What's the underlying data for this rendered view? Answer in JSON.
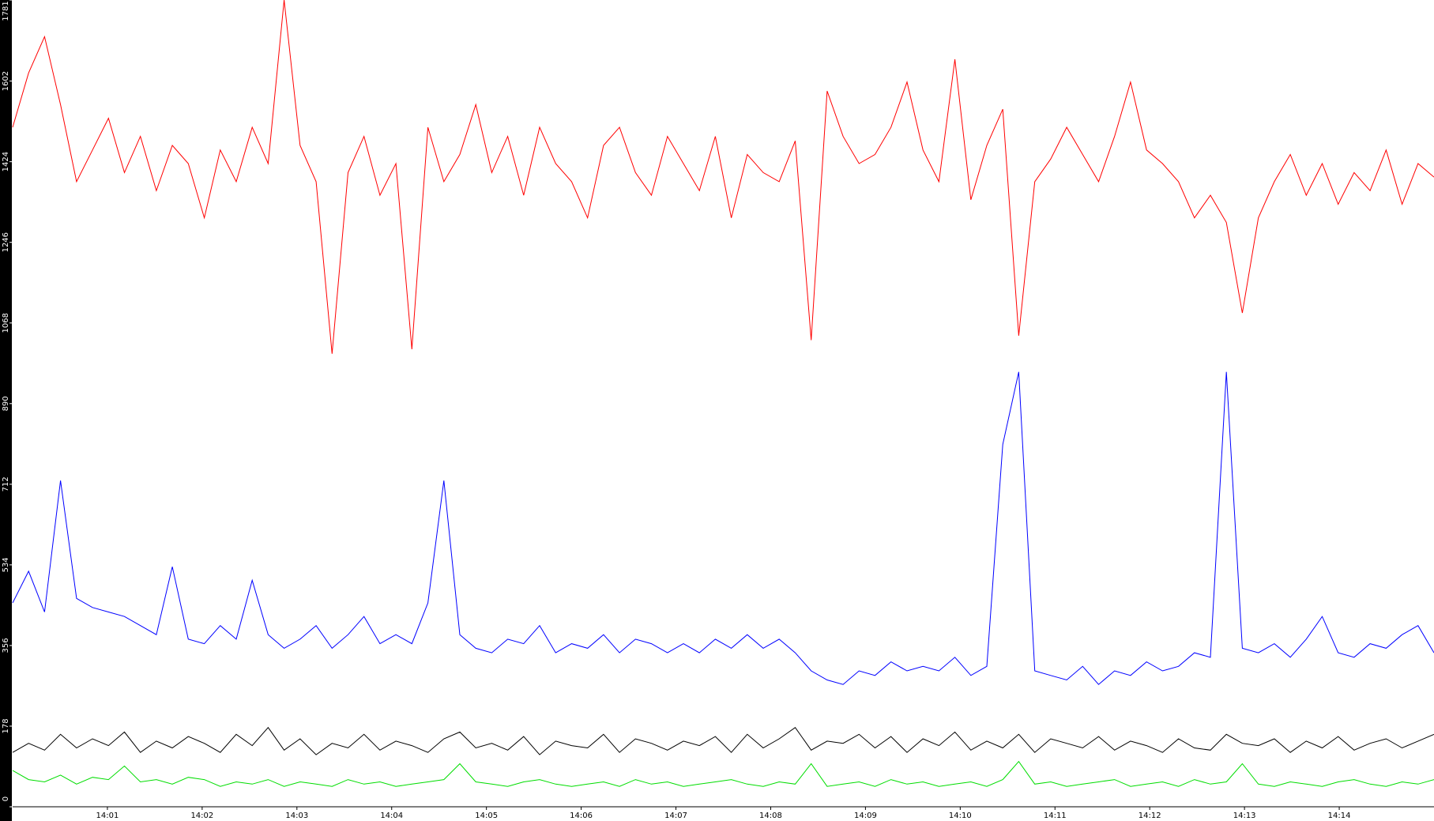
{
  "chart_data": {
    "type": "line",
    "xlim": [
      "14:00",
      "14:15"
    ],
    "xticks": [
      "14:01",
      "14:02",
      "14:03",
      "14:04",
      "14:05",
      "14:06",
      "14:07",
      "14:08",
      "14:09",
      "14:10",
      "14:11",
      "14:12",
      "14:13",
      "14:14"
    ],
    "ylim": [
      0,
      1781
    ],
    "yticks": [
      0,
      178,
      356,
      534,
      712,
      890,
      1068,
      1246,
      1424,
      1602,
      1781
    ],
    "series": [
      {
        "color": "#ff0000",
        "values": [
          1500,
          1620,
          1700,
          1550,
          1380,
          1450,
          1520,
          1400,
          1480,
          1360,
          1460,
          1420,
          1300,
          1450,
          1380,
          1500,
          1420,
          1781,
          1460,
          1380,
          1000,
          1400,
          1480,
          1350,
          1420,
          1010,
          1500,
          1380,
          1440,
          1550,
          1400,
          1480,
          1350,
          1500,
          1420,
          1380,
          1300,
          1460,
          1500,
          1400,
          1350,
          1480,
          1420,
          1360,
          1480,
          1300,
          1440,
          1400,
          1380,
          1470,
          1030,
          1580,
          1480,
          1420,
          1440,
          1500,
          1600,
          1450,
          1380,
          1650,
          1340,
          1460,
          1540,
          1040,
          1380,
          1430,
          1500,
          1440,
          1380,
          1480,
          1600,
          1450,
          1420,
          1380,
          1300,
          1350,
          1290,
          1090,
          1300,
          1380,
          1440,
          1350,
          1420,
          1330,
          1400,
          1360,
          1450,
          1330,
          1420,
          1390
        ]
      },
      {
        "color": "#0000ff",
        "values": [
          450,
          520,
          430,
          720,
          460,
          440,
          430,
          420,
          400,
          380,
          530,
          370,
          360,
          400,
          370,
          500,
          380,
          350,
          370,
          400,
          350,
          380,
          420,
          360,
          380,
          360,
          450,
          720,
          380,
          350,
          340,
          370,
          360,
          400,
          340,
          360,
          350,
          380,
          340,
          370,
          360,
          340,
          360,
          340,
          370,
          350,
          380,
          350,
          370,
          340,
          300,
          280,
          270,
          300,
          290,
          320,
          300,
          310,
          300,
          330,
          290,
          310,
          800,
          960,
          300,
          290,
          280,
          310,
          270,
          300,
          290,
          320,
          300,
          310,
          340,
          330,
          960,
          350,
          340,
          360,
          330,
          370,
          420,
          340,
          330,
          360,
          350,
          380,
          400,
          340
        ]
      },
      {
        "color": "#000000",
        "values": [
          120,
          140,
          125,
          160,
          130,
          150,
          135,
          165,
          120,
          145,
          130,
          155,
          140,
          120,
          160,
          135,
          175,
          125,
          150,
          115,
          140,
          130,
          160,
          125,
          145,
          135,
          120,
          150,
          165,
          130,
          140,
          125,
          155,
          115,
          145,
          135,
          130,
          160,
          120,
          150,
          140,
          125,
          145,
          135,
          155,
          120,
          160,
          130,
          150,
          175,
          125,
          145,
          140,
          160,
          130,
          155,
          120,
          150,
          135,
          165,
          125,
          145,
          130,
          160,
          120,
          150,
          140,
          130,
          155,
          125,
          145,
          135,
          120,
          150,
          130,
          125,
          160,
          140,
          135,
          150,
          120,
          145,
          130,
          155,
          125,
          140,
          150,
          130,
          145,
          160
        ]
      },
      {
        "color": "#00dd00",
        "values": [
          80,
          60,
          55,
          70,
          50,
          65,
          60,
          90,
          55,
          60,
          50,
          65,
          60,
          45,
          55,
          50,
          60,
          45,
          55,
          50,
          45,
          60,
          50,
          55,
          45,
          50,
          55,
          60,
          95,
          55,
          50,
          45,
          55,
          60,
          50,
          45,
          50,
          55,
          45,
          60,
          50,
          55,
          45,
          50,
          55,
          60,
          50,
          45,
          55,
          50,
          95,
          45,
          50,
          55,
          45,
          60,
          50,
          55,
          45,
          50,
          55,
          45,
          60,
          100,
          50,
          55,
          45,
          50,
          55,
          60,
          45,
          50,
          55,
          45,
          60,
          50,
          55,
          95,
          50,
          45,
          55,
          50,
          45,
          55,
          60,
          50,
          45,
          55,
          50,
          60
        ]
      }
    ]
  }
}
